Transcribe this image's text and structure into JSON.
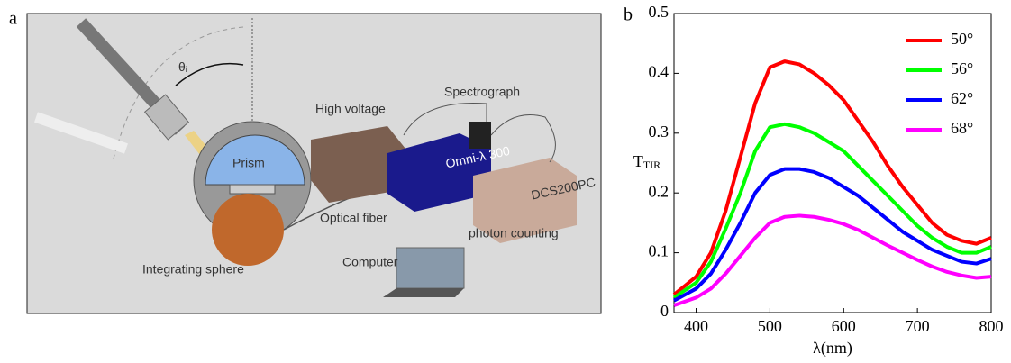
{
  "panel_labels": [
    "a",
    "b"
  ],
  "diagram": {
    "labels": {
      "theta_main": "θ",
      "theta_sub": "i",
      "prism": "Prism",
      "high_voltage": "High voltage",
      "spectrograph": "Spectrograph",
      "omni": "Omni-λ 300",
      "dcs": "DCS200PC",
      "optical_fiber": "Optical fiber",
      "photon_counting": "photon counting",
      "integrating_sphere": "Integrating sphere",
      "computer": "Computer"
    }
  },
  "chart_data": {
    "type": "line",
    "x_label": "λ(nm)",
    "y_label": "T",
    "y_label_subscript": "TIR",
    "x": [
      370,
      400,
      420,
      440,
      460,
      480,
      500,
      520,
      540,
      560,
      580,
      600,
      620,
      640,
      660,
      680,
      700,
      720,
      740,
      760,
      780,
      800
    ],
    "series": [
      {
        "name": "50°",
        "color": "#ff0000",
        "values": [
          0.03,
          0.06,
          0.1,
          0.17,
          0.26,
          0.35,
          0.41,
          0.42,
          0.415,
          0.4,
          0.38,
          0.355,
          0.32,
          0.285,
          0.245,
          0.21,
          0.18,
          0.15,
          0.13,
          0.12,
          0.115,
          0.125
        ]
      },
      {
        "name": "56°",
        "color": "#00ff00",
        "values": [
          0.025,
          0.05,
          0.085,
          0.14,
          0.2,
          0.27,
          0.31,
          0.315,
          0.31,
          0.3,
          0.285,
          0.27,
          0.245,
          0.22,
          0.195,
          0.17,
          0.145,
          0.125,
          0.11,
          0.1,
          0.1,
          0.11
        ]
      },
      {
        "name": "62°",
        "color": "#0000ff",
        "values": [
          0.02,
          0.04,
          0.065,
          0.105,
          0.15,
          0.2,
          0.23,
          0.24,
          0.24,
          0.235,
          0.225,
          0.21,
          0.195,
          0.175,
          0.155,
          0.135,
          0.12,
          0.105,
          0.095,
          0.085,
          0.082,
          0.09
        ]
      },
      {
        "name": "68°",
        "color": "#ff00ff",
        "values": [
          0.012,
          0.025,
          0.04,
          0.065,
          0.095,
          0.125,
          0.15,
          0.16,
          0.162,
          0.16,
          0.155,
          0.148,
          0.138,
          0.125,
          0.112,
          0.1,
          0.088,
          0.077,
          0.068,
          0.062,
          0.058,
          0.06
        ]
      }
    ],
    "xlim": [
      370,
      800
    ],
    "ylim": [
      0,
      0.5
    ],
    "xticks": [
      400,
      500,
      600,
      700,
      800
    ],
    "yticks": [
      0,
      0.1,
      0.2,
      0.3,
      0.4,
      0.5
    ],
    "legend": "upper right"
  }
}
